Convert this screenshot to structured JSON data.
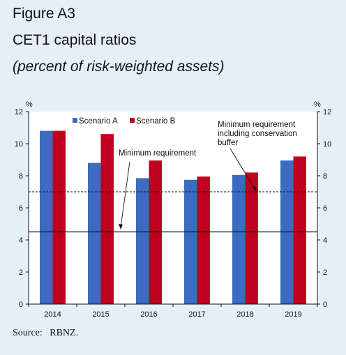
{
  "figure": {
    "label": "Figure A3",
    "title": "CET1 capital ratios",
    "subtitle": "(percent of risk-weighted assets)",
    "source": "Source:   RBNZ."
  },
  "chart_data": {
    "type": "bar",
    "categories": [
      "2014",
      "2015",
      "2016",
      "2017",
      "2018",
      "2019"
    ],
    "series": [
      {
        "name": "Scenario A",
        "color": "#3b6cc0",
        "values": [
          10.8,
          8.8,
          7.85,
          7.75,
          8.05,
          8.95
        ]
      },
      {
        "name": "Scenario B",
        "color": "#c00020",
        "values": [
          10.8,
          10.6,
          8.95,
          7.95,
          8.2,
          9.2
        ]
      }
    ],
    "ylabel_left": "%",
    "ylabel_right": "%",
    "ylim": [
      0,
      12
    ],
    "yticks": [
      "0",
      "2",
      "4",
      "6",
      "8",
      "10",
      "12"
    ],
    "legend_position": "top-left",
    "reference_lines": [
      {
        "value": 7,
        "style": "dashed",
        "label": [
          "Minimum requirement",
          "including conservation",
          "buffer"
        ]
      },
      {
        "value": 4.5,
        "style": "solid",
        "label": [
          "Minimum requirement"
        ]
      }
    ]
  }
}
